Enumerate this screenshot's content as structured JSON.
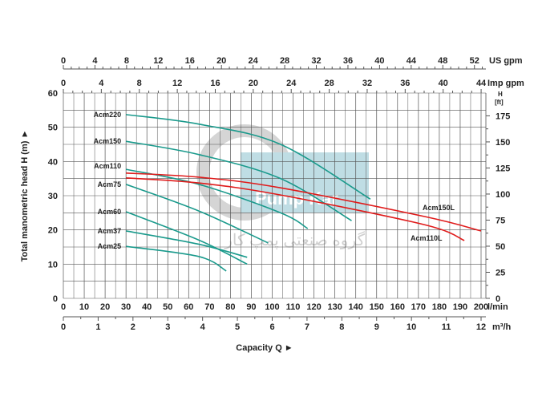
{
  "chart_data": {
    "type": "line",
    "xlabel": "Capacity Q ►",
    "ylabel": "Total manometric head H (m) ►",
    "x_unit": "l/min",
    "xlim": [
      0,
      200
    ],
    "ylim": [
      0,
      60
    ],
    "grid": true,
    "x_ticks": [
      0,
      10,
      20,
      30,
      40,
      50,
      60,
      70,
      80,
      90,
      100,
      110,
      120,
      130,
      140,
      150,
      160,
      170,
      180,
      190,
      200
    ],
    "y_ticks": [
      0,
      10,
      20,
      30,
      40,
      50,
      60
    ],
    "secondary_axes": {
      "us_gpm": {
        "label": "US gpm",
        "ticks": [
          0,
          4,
          8,
          12,
          16,
          20,
          24,
          28,
          32,
          36,
          40,
          44,
          48,
          52
        ]
      },
      "imp_gpm": {
        "label": "Imp gpm",
        "ticks": [
          0,
          4,
          8,
          12,
          16,
          20,
          24,
          28,
          32,
          36,
          40,
          44
        ]
      },
      "m3h": {
        "label": "m³/h",
        "ticks": [
          0,
          1,
          2,
          3,
          4,
          5,
          6,
          7,
          8,
          9,
          10,
          11,
          12
        ]
      },
      "ft": {
        "label_top": "H",
        "label_unit": "[ft]",
        "ticks": [
          0,
          25,
          50,
          75,
          100,
          125,
          150,
          175
        ]
      }
    },
    "series": [
      {
        "name": "Acm220",
        "color": "#1a9a8c",
        "label_side": "left",
        "points": [
          [
            30,
            53.7
          ],
          [
            65,
            50.9
          ],
          [
            104,
            45
          ],
          [
            147,
            29
          ]
        ]
      },
      {
        "name": "Acm150",
        "color": "#1a9a8c",
        "label_side": "left",
        "points": [
          [
            30,
            45.9
          ],
          [
            65,
            42
          ],
          [
            104,
            35
          ],
          [
            138,
            22.7
          ]
        ]
      },
      {
        "name": "Acm110",
        "color": "#1a9a8c",
        "label_side": "left",
        "points": [
          [
            30,
            37.7
          ],
          [
            65,
            33.3
          ],
          [
            104,
            25
          ],
          [
            117,
            20.4
          ]
        ]
      },
      {
        "name": "Acm75",
        "color": "#1a9a8c",
        "label_side": "left",
        "points": [
          [
            30,
            33.3
          ],
          [
            65,
            25.5
          ],
          [
            98,
            16.2
          ]
        ]
      },
      {
        "name": "Acm60",
        "color": "#1a9a8c",
        "label_side": "left",
        "points": [
          [
            30,
            25.3
          ],
          [
            65,
            17
          ],
          [
            88,
            10
          ]
        ]
      },
      {
        "name": "Acm37",
        "color": "#1a9a8c",
        "label_side": "left",
        "points": [
          [
            30,
            19.7
          ],
          [
            65,
            15.8
          ],
          [
            88,
            12
          ]
        ]
      },
      {
        "name": "Acm25",
        "color": "#1a9a8c",
        "label_side": "left",
        "points": [
          [
            30,
            15.2
          ],
          [
            65,
            12.2
          ],
          [
            78,
            8
          ]
        ]
      },
      {
        "name": "Acm150L",
        "color": "#e01b1b",
        "label_side": "right",
        "points": [
          [
            30,
            36.6
          ],
          [
            65,
            35.4
          ],
          [
            104,
            32.3
          ],
          [
            173,
            23.9
          ],
          [
            200,
            19.7
          ]
        ]
      },
      {
        "name": "Acm110L",
        "color": "#e01b1b",
        "label_side": "right",
        "points": [
          [
            30,
            35.2
          ],
          [
            65,
            33.7
          ],
          [
            104,
            30.2
          ],
          [
            173,
            21.5
          ],
          [
            192,
            16.9
          ]
        ]
      }
    ],
    "watermark": {
      "latin": "Pump Kar",
      "persian": "گروه صنعتی پمپ کار"
    }
  }
}
